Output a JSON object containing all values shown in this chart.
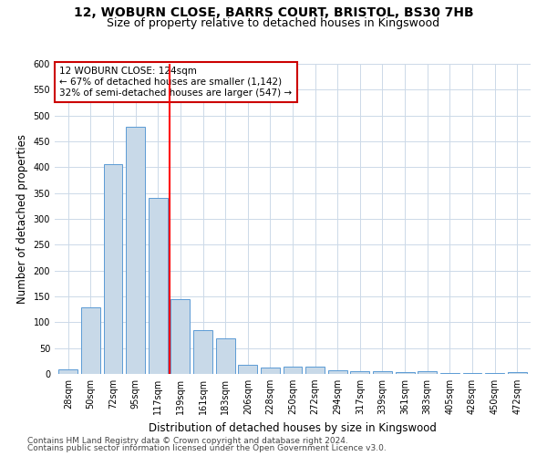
{
  "title1": "12, WOBURN CLOSE, BARRS COURT, BRISTOL, BS30 7HB",
  "title2": "Size of property relative to detached houses in Kingswood",
  "xlabel": "Distribution of detached houses by size in Kingswood",
  "ylabel": "Number of detached properties",
  "categories": [
    "28sqm",
    "50sqm",
    "72sqm",
    "95sqm",
    "117sqm",
    "139sqm",
    "161sqm",
    "183sqm",
    "206sqm",
    "228sqm",
    "250sqm",
    "272sqm",
    "294sqm",
    "317sqm",
    "339sqm",
    "361sqm",
    "383sqm",
    "405sqm",
    "428sqm",
    "450sqm",
    "472sqm"
  ],
  "values": [
    8,
    128,
    405,
    478,
    340,
    145,
    85,
    68,
    18,
    12,
    14,
    14,
    7,
    6,
    5,
    4,
    5,
    2,
    2,
    1,
    4
  ],
  "bar_color": "#c8d9e8",
  "bar_edge_color": "#5b9bd5",
  "red_line_x": 4.5,
  "annotation_line1": "12 WOBURN CLOSE: 124sqm",
  "annotation_line2": "← 67% of detached houses are smaller (1,142)",
  "annotation_line3": "32% of semi-detached houses are larger (547) →",
  "annotation_box_color": "#ffffff",
  "annotation_box_edge": "#cc0000",
  "footer1": "Contains HM Land Registry data © Crown copyright and database right 2024.",
  "footer2": "Contains public sector information licensed under the Open Government Licence v3.0.",
  "ylim": [
    0,
    600
  ],
  "title1_fontsize": 10,
  "title2_fontsize": 9,
  "xlabel_fontsize": 8.5,
  "ylabel_fontsize": 8.5,
  "tick_fontsize": 7,
  "annotation_fontsize": 7.5,
  "footer_fontsize": 6.5,
  "bg_color": "#ffffff",
  "grid_color": "#ccd9e8",
  "yticks": [
    0,
    50,
    100,
    150,
    200,
    250,
    300,
    350,
    400,
    450,
    500,
    550,
    600
  ]
}
